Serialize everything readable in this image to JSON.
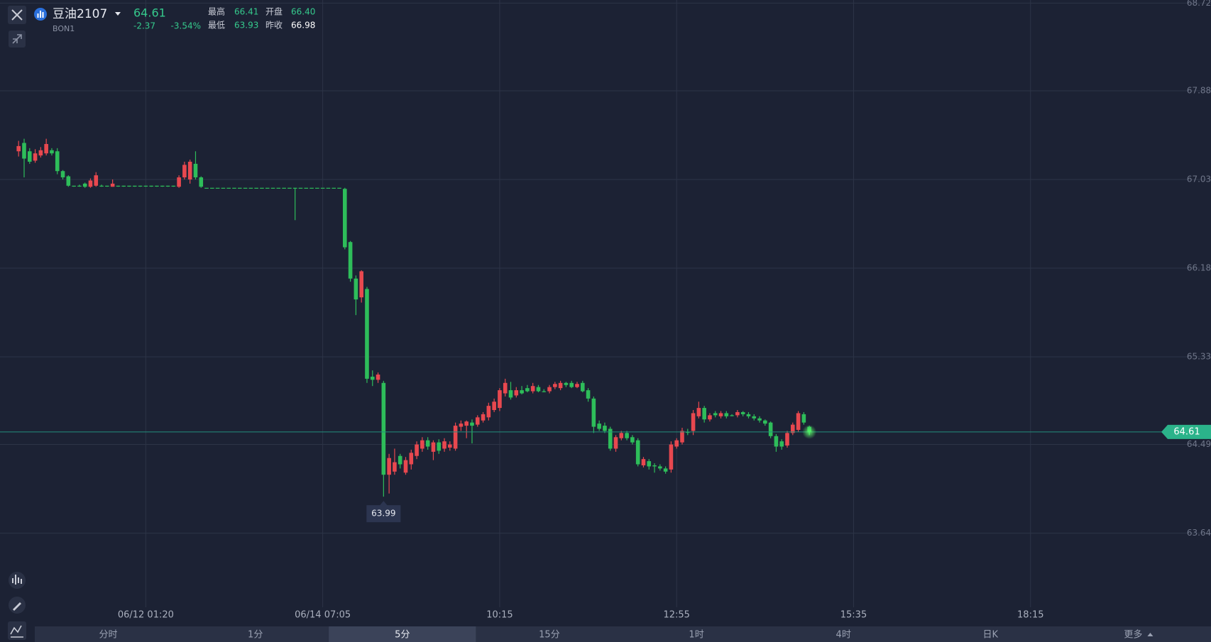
{
  "header": {
    "symbol": "豆油2107",
    "code": "BON1",
    "price": "64.61",
    "change": "-2.37",
    "change_pct": "-3.54%",
    "stats": [
      {
        "label": "最高",
        "value": "66.41"
      },
      {
        "label": "开盘",
        "value": "66.40"
      },
      {
        "label": "最低",
        "value": "63.93"
      },
      {
        "label": "昨收",
        "value": "66.98"
      }
    ]
  },
  "tabs": {
    "items": [
      "分时",
      "1分",
      "5分",
      "15分",
      "1时",
      "4时",
      "日K",
      "更多"
    ],
    "active": 2
  },
  "chart_data": {
    "type": "candlestick",
    "up_color": "#e8484f",
    "down_color": "#2ebd5a",
    "grid": true,
    "ylim": [
      62.93,
      68.75
    ],
    "yticks": [
      63.64,
      64.49,
      65.33,
      66.18,
      67.03,
      67.88,
      68.72
    ],
    "categories": [
      null,
      null,
      null,
      null,
      null,
      null,
      null,
      null,
      null,
      null,
      null,
      null,
      null,
      null,
      null,
      null,
      null,
      null,
      null,
      null,
      null,
      null,
      null,
      "06/12 01:20",
      null,
      null,
      null,
      null,
      null,
      null,
      null,
      null,
      null,
      null,
      null,
      null,
      null,
      null,
      null,
      null,
      null,
      null,
      null,
      null,
      null,
      null,
      null,
      null,
      null,
      null,
      null,
      null,
      null,
      null,
      null,
      "06/14 07:05",
      null,
      null,
      null,
      null,
      null,
      null,
      null,
      null,
      null,
      null,
      null,
      null,
      null,
      null,
      null,
      null,
      null,
      null,
      null,
      null,
      null,
      null,
      null,
      null,
      null,
      null,
      null,
      null,
      null,
      null,
      null,
      "10:15",
      null,
      null,
      null,
      null,
      null,
      null,
      null,
      null,
      null,
      null,
      null,
      null,
      null,
      null,
      null,
      null,
      null,
      null,
      null,
      null,
      null,
      null,
      null,
      null,
      null,
      null,
      null,
      null,
      null,
      null,
      null,
      "12:55",
      null,
      null,
      null,
      null,
      null,
      null,
      null,
      null,
      null,
      null,
      null,
      null,
      null,
      null,
      null,
      null,
      null,
      null,
      null,
      null,
      null,
      null,
      null,
      null,
      null,
      null,
      null,
      null,
      null,
      null,
      null,
      "15:35",
      null,
      null,
      null,
      null,
      null,
      null,
      null,
      null,
      null,
      null,
      null,
      null,
      null,
      null,
      null,
      null,
      null,
      null,
      null,
      null,
      null,
      null,
      null,
      null,
      null,
      null,
      null,
      null,
      null,
      null,
      null,
      "18:15",
      null,
      null,
      null,
      null,
      null,
      null,
      null,
      null,
      null,
      null,
      null,
      null,
      null,
      null,
      null,
      null,
      null,
      null,
      null,
      null,
      null,
      null,
      null
    ],
    "open": [
      67.3,
      67.38,
      67.3,
      67.21,
      67.26,
      67.28,
      67.31,
      67.3,
      67.11,
      67.06,
      66.97,
      66.97,
      66.99,
      66.96,
      66.97,
      66.97,
      66.97,
      66.96,
      66.97,
      66.97,
      66.97,
      66.97,
      66.97,
      66.97,
      66.97,
      66.97,
      66.97,
      66.97,
      66.97,
      66.96,
      67.05,
      67.03,
      67.18,
      67.05,
      66.95,
      66.95,
      66.95,
      66.95,
      66.95,
      66.95,
      66.95,
      66.95,
      66.95,
      66.95,
      66.95,
      66.95,
      66.95,
      66.95,
      66.95,
      66.95,
      66.95,
      66.95,
      66.95,
      66.95,
      66.95,
      66.95,
      66.95,
      66.95,
      66.95,
      66.94,
      66.43,
      66.08,
      65.9,
      65.98,
      65.14,
      65.11,
      65.08,
      64.2,
      64.23,
      64.38,
      64.22,
      64.3,
      64.38,
      64.45,
      64.53,
      64.42,
      64.51,
      64.45,
      64.46,
      64.45,
      64.66,
      64.67,
      64.7,
      64.68,
      64.72,
      64.75,
      64.82,
      64.84,
      64.98,
      65.01,
      64.96,
      65.01,
      65.03,
      65.0,
      65.04,
      65.0,
      65.0,
      65.04,
      65.03,
      65.08,
      65.08,
      65.04,
      65.08,
      65.01,
      64.93,
      64.69,
      64.67,
      64.64,
      64.45,
      64.55,
      64.6,
      64.56,
      64.53,
      64.29,
      64.33,
      64.29,
      64.28,
      64.26,
      64.25,
      64.47,
      64.51,
      64.61,
      64.62,
      64.76,
      64.84,
      64.73,
      64.79,
      64.76,
      64.79,
      64.77,
      64.77,
      64.8,
      64.78,
      64.76,
      64.74,
      64.72,
      64.7,
      64.57,
      64.52,
      64.48,
      64.6,
      64.63,
      64.78,
      64.66,
      null,
      null,
      null,
      null,
      null,
      null,
      null,
      null,
      null,
      null,
      null,
      null,
      null,
      null,
      null,
      null,
      null,
      null,
      null,
      null,
      null,
      null,
      null,
      null,
      null,
      null,
      null,
      null,
      null,
      null,
      null,
      null,
      null,
      null,
      null,
      null,
      null,
      null,
      null,
      null,
      null,
      null,
      null,
      null,
      null,
      null,
      null,
      null,
      null,
      null,
      null,
      null,
      null,
      null,
      null,
      null,
      null,
      null,
      null,
      null,
      null,
      null,
      null
    ],
    "high": [
      67.4,
      67.42,
      67.33,
      67.32,
      67.34,
      67.42,
      67.33,
      67.33,
      67.12,
      67.07,
      66.97,
      66.98,
      67.0,
      67.04,
      67.1,
      66.98,
      66.97,
      67.03,
      66.97,
      66.97,
      66.97,
      66.97,
      66.97,
      66.97,
      66.97,
      66.97,
      66.97,
      66.97,
      66.97,
      67.07,
      67.2,
      67.22,
      67.3,
      67.06,
      66.95,
      66.95,
      66.95,
      66.95,
      66.95,
      66.95,
      66.95,
      66.95,
      66.95,
      66.95,
      66.95,
      66.95,
      66.95,
      66.95,
      66.95,
      66.95,
      66.95,
      66.95,
      66.95,
      66.95,
      66.95,
      66.95,
      66.95,
      66.95,
      66.95,
      66.95,
      66.44,
      66.11,
      66.16,
      66.0,
      65.2,
      65.18,
      65.1,
      64.4,
      64.45,
      64.4,
      64.37,
      64.44,
      64.52,
      64.56,
      64.56,
      64.53,
      64.54,
      64.55,
      64.52,
      64.7,
      64.72,
      64.72,
      64.73,
      64.77,
      64.8,
      64.89,
      64.93,
      65.03,
      65.12,
      65.09,
      65.04,
      65.05,
      65.06,
      65.08,
      65.06,
      65.02,
      65.06,
      65.09,
      65.1,
      65.09,
      65.1,
      65.09,
      65.1,
      65.03,
      64.95,
      64.72,
      64.7,
      64.66,
      64.58,
      64.62,
      64.62,
      64.58,
      64.55,
      64.37,
      64.35,
      64.31,
      64.3,
      64.28,
      64.52,
      64.55,
      64.65,
      64.64,
      64.82,
      64.9,
      64.86,
      64.79,
      64.81,
      64.81,
      64.81,
      64.78,
      64.82,
      64.81,
      64.8,
      64.78,
      64.76,
      64.73,
      64.71,
      64.59,
      64.54,
      64.62,
      64.7,
      64.81,
      64.8,
      64.67,
      null,
      null,
      null,
      null,
      null,
      null,
      null,
      null,
      null,
      null,
      null,
      null,
      null,
      null,
      null,
      null,
      null,
      null,
      null,
      null,
      null,
      null,
      null,
      null,
      null,
      null,
      null,
      null,
      null,
      null,
      null,
      null,
      null,
      null,
      null,
      null,
      null,
      null,
      null,
      null,
      null,
      null,
      null,
      null,
      null,
      null,
      null,
      null,
      null,
      null,
      null,
      null,
      null,
      null,
      null,
      null,
      null,
      null,
      null,
      null,
      null,
      null,
      null
    ],
    "low": [
      67.25,
      67.05,
      67.18,
      67.19,
      67.24,
      67.26,
      67.26,
      67.08,
      67.03,
      66.96,
      66.96,
      66.96,
      66.95,
      66.95,
      66.96,
      66.96,
      66.96,
      66.96,
      66.96,
      66.96,
      66.96,
      66.96,
      66.96,
      66.96,
      66.96,
      66.96,
      66.96,
      66.96,
      66.96,
      66.95,
      67.03,
      66.99,
      67.03,
      66.95,
      66.95,
      66.95,
      66.95,
      66.95,
      66.95,
      66.95,
      66.95,
      66.95,
      66.95,
      66.95,
      66.95,
      66.95,
      66.95,
      66.95,
      66.95,
      66.95,
      66.64,
      66.95,
      66.95,
      66.95,
      66.95,
      66.95,
      66.95,
      66.95,
      66.95,
      66.36,
      66.05,
      65.73,
      65.85,
      65.08,
      65.05,
      65.08,
      63.99,
      64.02,
      64.2,
      64.26,
      64.2,
      64.25,
      64.35,
      64.42,
      64.44,
      64.34,
      64.4,
      64.42,
      64.43,
      64.43,
      64.62,
      64.55,
      64.5,
      64.66,
      64.7,
      64.72,
      64.8,
      64.81,
      64.95,
      64.92,
      64.94,
      64.97,
      64.99,
      64.98,
      64.99,
      64.99,
      64.98,
      65.02,
      65.01,
      65.04,
      65.03,
      65.03,
      64.99,
      64.9,
      64.6,
      64.62,
      64.6,
      64.43,
      64.42,
      64.53,
      64.53,
      64.49,
      64.28,
      64.27,
      64.25,
      64.22,
      64.24,
      64.21,
      64.22,
      64.45,
      64.49,
      64.58,
      64.58,
      64.74,
      64.7,
      64.71,
      64.75,
      64.74,
      64.74,
      64.76,
      64.75,
      64.76,
      64.74,
      64.72,
      64.7,
      64.67,
      64.55,
      64.42,
      64.44,
      64.46,
      64.58,
      64.61,
      64.68,
      64.58,
      null,
      null,
      null,
      null,
      null,
      null,
      null,
      null,
      null,
      null,
      null,
      null,
      null,
      null,
      null,
      null,
      null,
      null,
      null,
      null,
      null,
      null,
      null,
      null,
      null,
      null,
      null,
      null,
      null,
      null,
      null,
      null,
      null,
      null,
      null,
      null,
      null,
      null,
      null,
      null,
      null,
      null,
      null,
      null,
      null,
      null,
      null,
      null,
      null,
      null,
      null,
      null,
      null,
      null,
      null,
      null,
      null,
      null,
      null,
      null,
      null,
      null,
      null
    ],
    "close": [
      67.35,
      67.23,
      67.2,
      67.28,
      67.31,
      67.37,
      67.28,
      67.11,
      67.05,
      66.97,
      66.97,
      66.97,
      66.96,
      67.02,
      67.07,
      66.97,
      66.97,
      66.99,
      66.97,
      66.97,
      66.97,
      66.97,
      66.97,
      66.97,
      66.97,
      66.97,
      66.97,
      66.97,
      66.97,
      67.05,
      67.17,
      67.2,
      67.05,
      66.96,
      66.95,
      66.95,
      66.95,
      66.95,
      66.95,
      66.95,
      66.95,
      66.95,
      66.95,
      66.95,
      66.95,
      66.95,
      66.95,
      66.95,
      66.95,
      66.95,
      66.95,
      66.95,
      66.95,
      66.95,
      66.95,
      66.95,
      66.95,
      66.95,
      66.95,
      66.38,
      66.08,
      65.88,
      66.15,
      65.12,
      65.11,
      65.16,
      64.2,
      64.36,
      64.32,
      64.3,
      64.34,
      64.41,
      64.49,
      64.53,
      64.47,
      64.51,
      64.43,
      64.52,
      64.49,
      64.67,
      64.69,
      64.71,
      64.67,
      64.75,
      64.78,
      64.86,
      64.9,
      65.01,
      65.08,
      64.94,
      65.01,
      64.98,
      65.0,
      65.05,
      65.0,
      65.0,
      65.04,
      65.07,
      65.08,
      65.06,
      65.04,
      65.07,
      65.0,
      64.93,
      64.66,
      64.64,
      64.62,
      64.45,
      64.56,
      64.6,
      64.55,
      64.51,
      64.3,
      64.35,
      64.28,
      64.28,
      64.26,
      64.23,
      64.49,
      64.53,
      64.62,
      64.61,
      64.79,
      64.84,
      64.73,
      64.77,
      64.77,
      64.79,
      64.76,
      64.77,
      64.8,
      64.78,
      64.76,
      64.74,
      64.72,
      64.69,
      64.57,
      64.47,
      64.47,
      64.6,
      64.68,
      64.79,
      64.7,
      64.61,
      null,
      null,
      null,
      null,
      null,
      null,
      null,
      null,
      null,
      null,
      null,
      null,
      null,
      null,
      null,
      null,
      null,
      null,
      null,
      null,
      null,
      null,
      null,
      null,
      null,
      null,
      null,
      null,
      null,
      null,
      null,
      null,
      null,
      null,
      null,
      null,
      null,
      null,
      null,
      null,
      null,
      null,
      null,
      null,
      null,
      null,
      null,
      null,
      null,
      null,
      null,
      null,
      null,
      null,
      null,
      null,
      null,
      null,
      null,
      null,
      null,
      null,
      null
    ]
  }
}
